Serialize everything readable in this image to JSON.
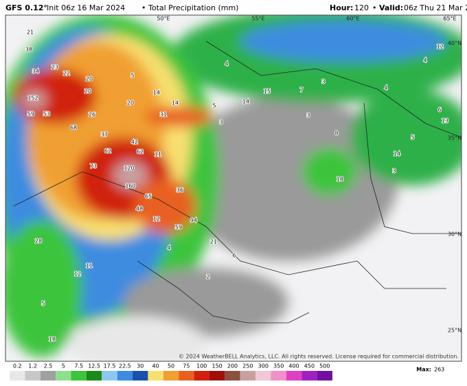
{
  "header": {
    "model": "GFS 0.12°",
    "init": "Init 06z 16 Mar 2024",
    "separator": "•",
    "field": "Total Precipitation (mm)",
    "hour_label": "Hour:",
    "hour": "120",
    "valid_label": "Valid:",
    "valid": "06z Thu 21 Mar 2024"
  },
  "map": {
    "graticule": [
      "50°E",
      "55°E",
      "60°E",
      "65°E",
      "40°N",
      "35°N",
      "30°N",
      "25°N"
    ],
    "point_values": [
      21,
      38,
      34,
      23,
      22,
      20,
      20,
      152,
      59,
      53,
      26,
      20,
      68,
      37,
      31,
      14,
      14,
      5,
      42,
      62,
      62,
      11,
      73,
      120,
      160,
      65,
      48,
      12,
      59,
      94,
      36,
      21,
      6,
      4,
      28,
      11,
      12,
      5,
      18,
      4,
      15,
      14,
      5,
      3,
      7,
      3,
      12,
      4,
      4,
      6,
      13,
      8,
      3,
      18,
      14,
      5,
      3,
      2
    ],
    "copyright": "© 2024 WeatherBELL Analytics, LLC. All rights reserved. License required for commercial distribution."
  },
  "colorbar": {
    "ticks": [
      0.2,
      1.2,
      2.5,
      5,
      7.5,
      12.5,
      17.5,
      22.5,
      30,
      40,
      50,
      75,
      100,
      150,
      200,
      250,
      300,
      350,
      400,
      450,
      500
    ],
    "colors": [
      "#e8e8e8",
      "#c8c8c8",
      "#a0a0a0",
      "#8ee08e",
      "#3cc43c",
      "#1a8a1a",
      "#8ec8f0",
      "#3c8ce0",
      "#1a50b0",
      "#f8e070",
      "#f0a030",
      "#e86020",
      "#d02010",
      "#a01008",
      "#8a5040",
      "#c8a0a0",
      "#f0c8d8",
      "#f090c8",
      "#e040c0",
      "#a020c0",
      "#7010a0"
    ],
    "max_label": "Max:",
    "max": 263
  }
}
